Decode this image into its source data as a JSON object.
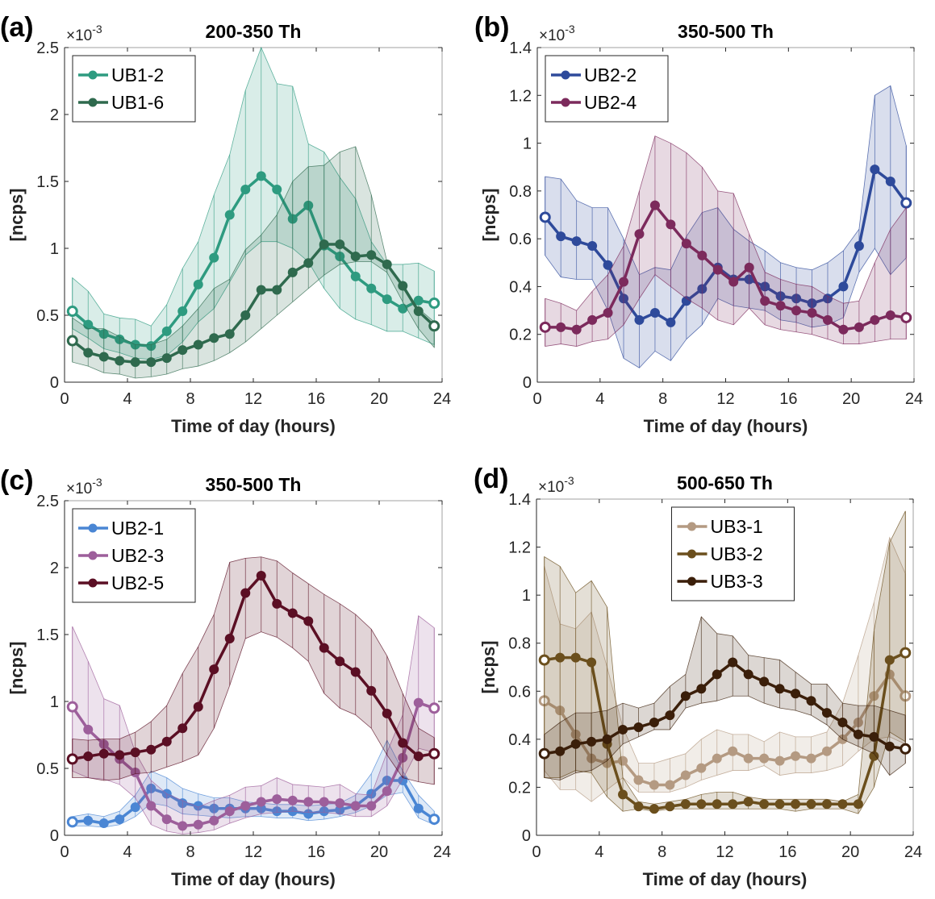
{
  "chart_data": [
    {
      "type": "line",
      "panel_label": "(a)",
      "title": "200-350 Th",
      "xlabel": "Time of day (hours)",
      "ylabel": "[ncps]",
      "y_multiplier": "×10-3",
      "xlim": [
        0,
        24
      ],
      "ylim": [
        0,
        2.5
      ],
      "xticks": [
        0,
        4,
        8,
        12,
        16,
        20,
        24
      ],
      "yticks": [
        0,
        0.5,
        1,
        1.5,
        2,
        2.5
      ],
      "ytick_labels": [
        "0",
        "0.5",
        "1",
        "1.5",
        "2",
        "2.5"
      ],
      "legend_position": "top-left",
      "x": [
        0.5,
        1.5,
        2.5,
        3.5,
        4.5,
        5.5,
        6.5,
        7.5,
        8.5,
        9.5,
        10.5,
        11.5,
        12.5,
        13.5,
        14.5,
        15.5,
        16.5,
        17.5,
        18.5,
        19.5,
        20.5,
        21.5,
        22.5,
        23.5
      ],
      "series": [
        {
          "name": "UB1-2",
          "color": "#2e9b80",
          "values": [
            0.53,
            0.43,
            0.36,
            0.32,
            0.28,
            0.27,
            0.38,
            0.53,
            0.73,
            0.93,
            1.25,
            1.44,
            1.54,
            1.44,
            1.22,
            1.32,
            1.02,
            0.94,
            0.79,
            0.7,
            0.62,
            0.55,
            0.61,
            0.59
          ],
          "upper": [
            0.78,
            0.68,
            0.51,
            0.48,
            0.47,
            0.42,
            0.58,
            0.85,
            1.05,
            1.4,
            1.7,
            2.18,
            2.5,
            2.23,
            2.21,
            1.78,
            1.72,
            1.53,
            1.37,
            1.05,
            0.88,
            0.88,
            0.89,
            0.83
          ],
          "lower": [
            0.4,
            0.33,
            0.25,
            0.22,
            0.18,
            0.17,
            0.2,
            0.3,
            0.45,
            0.55,
            0.75,
            0.95,
            1.05,
            1.05,
            1.0,
            0.9,
            0.7,
            0.55,
            0.47,
            0.43,
            0.38,
            0.38,
            0.33,
            0.28
          ]
        },
        {
          "name": "UB1-6",
          "color": "#2f6a4e",
          "values": [
            0.31,
            0.22,
            0.19,
            0.16,
            0.15,
            0.15,
            0.18,
            0.24,
            0.28,
            0.33,
            0.36,
            0.5,
            0.69,
            0.69,
            0.82,
            0.89,
            1.03,
            1.03,
            0.94,
            0.95,
            0.88,
            0.72,
            0.53,
            0.42
          ],
          "upper": [
            0.48,
            0.4,
            0.4,
            0.34,
            0.28,
            0.28,
            0.32,
            0.42,
            0.55,
            0.7,
            0.77,
            0.99,
            1.1,
            1.25,
            1.5,
            1.61,
            1.62,
            1.72,
            1.76,
            1.4,
            0.9,
            0.7,
            0.55,
            0.45
          ],
          "lower": [
            0.15,
            0.12,
            0.07,
            0.06,
            0.03,
            0.04,
            0.06,
            0.1,
            0.12,
            0.16,
            0.22,
            0.3,
            0.4,
            0.5,
            0.6,
            0.7,
            0.8,
            0.88,
            0.9,
            0.9,
            0.82,
            0.6,
            0.4,
            0.26
          ]
        }
      ]
    },
    {
      "type": "line",
      "panel_label": "(b)",
      "title": "350-500 Th",
      "xlabel": "Time of day (hours)",
      "ylabel": "[ncps]",
      "y_multiplier": "×10-3",
      "xlim": [
        0,
        24
      ],
      "ylim": [
        0,
        1.4
      ],
      "xticks": [
        0,
        4,
        8,
        12,
        16,
        20,
        24
      ],
      "yticks": [
        0,
        0.2,
        0.4,
        0.6,
        0.8,
        1,
        1.2,
        1.4
      ],
      "ytick_labels": [
        "0",
        "0.2",
        "0.4",
        "0.6",
        "0.8",
        "1",
        "1.2",
        "1.4"
      ],
      "legend_position": "top-left",
      "x": [
        0.5,
        1.5,
        2.5,
        3.5,
        4.5,
        5.5,
        6.5,
        7.5,
        8.5,
        9.5,
        10.5,
        11.5,
        12.5,
        13.5,
        14.5,
        15.5,
        16.5,
        17.5,
        18.5,
        19.5,
        20.5,
        21.5,
        22.5,
        23.5
      ],
      "series": [
        {
          "name": "UB2-2",
          "color": "#2e4a9b",
          "values": [
            0.69,
            0.61,
            0.59,
            0.57,
            0.49,
            0.35,
            0.26,
            0.29,
            0.25,
            0.34,
            0.39,
            0.48,
            0.43,
            0.43,
            0.4,
            0.36,
            0.35,
            0.33,
            0.35,
            0.4,
            0.57,
            0.89,
            0.84,
            0.75
          ],
          "upper": [
            0.86,
            0.85,
            0.76,
            0.73,
            0.73,
            0.6,
            0.45,
            0.48,
            0.47,
            0.61,
            0.71,
            0.73,
            0.64,
            0.59,
            0.55,
            0.5,
            0.48,
            0.47,
            0.5,
            0.55,
            0.64,
            1.2,
            1.24,
            0.99
          ],
          "lower": [
            0.53,
            0.44,
            0.43,
            0.43,
            0.3,
            0.1,
            0.06,
            0.13,
            0.09,
            0.18,
            0.24,
            0.35,
            0.32,
            0.31,
            0.3,
            0.26,
            0.25,
            0.23,
            0.24,
            0.27,
            0.46,
            0.56,
            0.45,
            0.52
          ]
        },
        {
          "name": "UB2-4",
          "color": "#7c2a5c",
          "values": [
            0.23,
            0.23,
            0.22,
            0.26,
            0.29,
            0.42,
            0.62,
            0.74,
            0.66,
            0.58,
            0.53,
            0.47,
            0.42,
            0.48,
            0.34,
            0.32,
            0.3,
            0.29,
            0.26,
            0.22,
            0.23,
            0.26,
            0.28,
            0.27
          ],
          "upper": [
            0.35,
            0.33,
            0.3,
            0.38,
            0.45,
            0.57,
            0.8,
            1.03,
            1.0,
            0.96,
            0.9,
            0.8,
            0.79,
            0.62,
            0.46,
            0.43,
            0.41,
            0.4,
            0.36,
            0.33,
            0.34,
            0.5,
            0.64,
            0.73
          ],
          "lower": [
            0.15,
            0.16,
            0.15,
            0.17,
            0.18,
            0.24,
            0.35,
            0.45,
            0.4,
            0.35,
            0.31,
            0.26,
            0.24,
            0.31,
            0.24,
            0.22,
            0.21,
            0.2,
            0.18,
            0.16,
            0.16,
            0.17,
            0.18,
            0.18
          ]
        }
      ]
    },
    {
      "type": "line",
      "panel_label": "(c)",
      "title": "350-500 Th",
      "xlabel": "Time of day (hours)",
      "ylabel": "[ncps]",
      "y_multiplier": "×10-3",
      "xlim": [
        0,
        24
      ],
      "ylim": [
        0,
        2.5
      ],
      "xticks": [
        0,
        4,
        8,
        12,
        16,
        20,
        24
      ],
      "yticks": [
        0,
        0.5,
        1,
        1.5,
        2,
        2.5
      ],
      "ytick_labels": [
        "0",
        "0.5",
        "1",
        "1.5",
        "2",
        "2.5"
      ],
      "legend_position": "top-left",
      "x": [
        0.5,
        1.5,
        2.5,
        3.5,
        4.5,
        5.5,
        6.5,
        7.5,
        8.5,
        9.5,
        10.5,
        11.5,
        12.5,
        13.5,
        14.5,
        15.5,
        16.5,
        17.5,
        18.5,
        19.5,
        20.5,
        21.5,
        22.5,
        23.5
      ],
      "series": [
        {
          "name": "UB2-1",
          "color": "#4a86d4",
          "values": [
            0.1,
            0.11,
            0.09,
            0.12,
            0.21,
            0.35,
            0.31,
            0.24,
            0.22,
            0.2,
            0.2,
            0.2,
            0.2,
            0.18,
            0.18,
            0.16,
            0.18,
            0.19,
            0.22,
            0.31,
            0.41,
            0.41,
            0.2,
            0.12
          ],
          "upper": [
            0.14,
            0.16,
            0.14,
            0.18,
            0.3,
            0.48,
            0.43,
            0.35,
            0.31,
            0.28,
            0.28,
            0.25,
            0.24,
            0.23,
            0.23,
            0.22,
            0.23,
            0.24,
            0.3,
            0.46,
            0.71,
            0.48,
            0.3,
            0.18
          ],
          "lower": [
            0.07,
            0.07,
            0.06,
            0.08,
            0.14,
            0.24,
            0.22,
            0.16,
            0.15,
            0.14,
            0.13,
            0.14,
            0.14,
            0.13,
            0.13,
            0.11,
            0.12,
            0.14,
            0.17,
            0.22,
            0.3,
            0.32,
            0.13,
            0.08
          ]
        },
        {
          "name": "UB2-3",
          "color": "#9d5f9b",
          "values": [
            0.96,
            0.79,
            0.68,
            0.57,
            0.47,
            0.22,
            0.12,
            0.07,
            0.08,
            0.11,
            0.18,
            0.22,
            0.25,
            0.27,
            0.26,
            0.25,
            0.25,
            0.24,
            0.22,
            0.22,
            0.33,
            0.58,
            0.99,
            0.95
          ],
          "upper": [
            1.56,
            1.3,
            1.02,
            0.97,
            0.62,
            0.41,
            0.31,
            0.26,
            0.21,
            0.26,
            0.3,
            0.36,
            0.37,
            0.43,
            0.38,
            0.37,
            0.36,
            0.38,
            0.31,
            0.3,
            0.62,
            0.9,
            1.64,
            1.55
          ],
          "lower": [
            0.48,
            0.43,
            0.42,
            0.38,
            0.28,
            0.08,
            0.03,
            0.01,
            0.02,
            0.04,
            0.09,
            0.13,
            0.16,
            0.17,
            0.18,
            0.17,
            0.17,
            0.16,
            0.14,
            0.14,
            0.22,
            0.42,
            0.65,
            0.62
          ]
        },
        {
          "name": "UB2-5",
          "color": "#5b0f24",
          "values": [
            0.57,
            0.59,
            0.61,
            0.6,
            0.62,
            0.64,
            0.7,
            0.8,
            0.96,
            1.24,
            1.47,
            1.81,
            1.94,
            1.73,
            1.66,
            1.6,
            1.4,
            1.3,
            1.22,
            1.08,
            0.91,
            0.69,
            0.59,
            0.61
          ],
          "upper": [
            0.72,
            0.71,
            0.72,
            0.72,
            0.77,
            0.85,
            0.97,
            1.21,
            1.41,
            1.65,
            2.04,
            2.07,
            2.08,
            2.05,
            1.96,
            1.88,
            1.8,
            1.73,
            1.65,
            1.54,
            1.34,
            1.06,
            0.8,
            0.73
          ],
          "lower": [
            0.43,
            0.43,
            0.41,
            0.42,
            0.46,
            0.47,
            0.51,
            0.55,
            0.6,
            0.8,
            1.12,
            1.47,
            1.52,
            1.48,
            1.4,
            1.3,
            1.06,
            0.95,
            0.9,
            0.8,
            0.6,
            0.43,
            0.4,
            0.38
          ]
        }
      ]
    },
    {
      "type": "line",
      "panel_label": "(d)",
      "title": "500-650 Th",
      "xlabel": "Time of day (hours)",
      "ylabel": "[ncps]",
      "y_multiplier": "×10-3",
      "xlim": [
        0,
        24
      ],
      "ylim": [
        0,
        1.4
      ],
      "xticks": [
        0,
        4,
        8,
        12,
        16,
        20,
        24
      ],
      "yticks": [
        0,
        0.2,
        0.4,
        0.6,
        0.8,
        1,
        1.2,
        1.4
      ],
      "ytick_labels": [
        "0",
        "0.2",
        "0.4",
        "0.6",
        "0.8",
        "1",
        "1.2",
        "1.4"
      ],
      "legend_position": "top-center",
      "x": [
        0.5,
        1.5,
        2.5,
        3.5,
        4.5,
        5.5,
        6.5,
        7.5,
        8.5,
        9.5,
        10.5,
        11.5,
        12.5,
        13.5,
        14.5,
        15.5,
        16.5,
        17.5,
        18.5,
        19.5,
        20.5,
        21.5,
        22.5,
        23.5
      ],
      "series": [
        {
          "name": "UB3-1",
          "color": "#b49a82",
          "values": [
            0.56,
            0.52,
            0.42,
            0.32,
            0.3,
            0.31,
            0.23,
            0.21,
            0.21,
            0.25,
            0.28,
            0.32,
            0.35,
            0.32,
            0.32,
            0.31,
            0.33,
            0.32,
            0.35,
            0.4,
            0.47,
            0.58,
            0.67,
            0.58
          ],
          "upper": [
            1.12,
            0.88,
            0.86,
            0.93,
            0.7,
            0.45,
            0.3,
            0.3,
            0.32,
            0.34,
            0.4,
            0.44,
            0.42,
            0.42,
            0.39,
            0.43,
            0.41,
            0.41,
            0.43,
            0.55,
            0.75,
            0.97,
            1.24,
            1.09
          ],
          "lower": [
            0.27,
            0.19,
            0.19,
            0.14,
            0.19,
            0.24,
            0.18,
            0.18,
            0.18,
            0.2,
            0.23,
            0.25,
            0.27,
            0.27,
            0.29,
            0.25,
            0.26,
            0.26,
            0.27,
            0.29,
            0.35,
            0.4,
            0.41,
            0.38
          ]
        },
        {
          "name": "UB3-2",
          "color": "#6b4f1d",
          "values": [
            0.73,
            0.74,
            0.74,
            0.72,
            0.38,
            0.17,
            0.12,
            0.11,
            0.12,
            0.13,
            0.13,
            0.13,
            0.13,
            0.14,
            0.13,
            0.13,
            0.13,
            0.13,
            0.13,
            0.13,
            0.13,
            0.33,
            0.73,
            0.76
          ],
          "upper": [
            1.16,
            1.12,
            1.01,
            1.06,
            0.95,
            0.24,
            0.14,
            0.13,
            0.14,
            0.15,
            0.17,
            0.18,
            0.18,
            0.16,
            0.15,
            0.15,
            0.15,
            0.15,
            0.15,
            0.14,
            0.17,
            0.85,
            1.22,
            1.35
          ],
          "lower": [
            0.24,
            0.24,
            0.27,
            0.26,
            0.16,
            0.1,
            0.11,
            0.1,
            0.11,
            0.11,
            0.11,
            0.11,
            0.11,
            0.11,
            0.11,
            0.11,
            0.1,
            0.11,
            0.11,
            0.11,
            0.09,
            0.2,
            0.43,
            0.39
          ]
        },
        {
          "name": "UB3-3",
          "color": "#3b1f0a",
          "values": [
            0.34,
            0.35,
            0.38,
            0.39,
            0.4,
            0.44,
            0.45,
            0.47,
            0.5,
            0.58,
            0.61,
            0.67,
            0.72,
            0.67,
            0.64,
            0.61,
            0.59,
            0.56,
            0.51,
            0.47,
            0.42,
            0.41,
            0.37,
            0.36
          ],
          "upper": [
            0.42,
            0.47,
            0.51,
            0.51,
            0.52,
            0.55,
            0.53,
            0.55,
            0.62,
            0.67,
            0.91,
            0.84,
            0.83,
            0.75,
            0.74,
            0.73,
            0.68,
            0.63,
            0.63,
            0.55,
            0.54,
            0.54,
            0.52,
            0.5
          ],
          "lower": [
            0.24,
            0.23,
            0.26,
            0.27,
            0.31,
            0.38,
            0.41,
            0.44,
            0.44,
            0.53,
            0.55,
            0.56,
            0.58,
            0.58,
            0.55,
            0.53,
            0.52,
            0.5,
            0.46,
            0.4,
            0.37,
            0.34,
            0.25,
            0.3
          ]
        }
      ]
    }
  ]
}
